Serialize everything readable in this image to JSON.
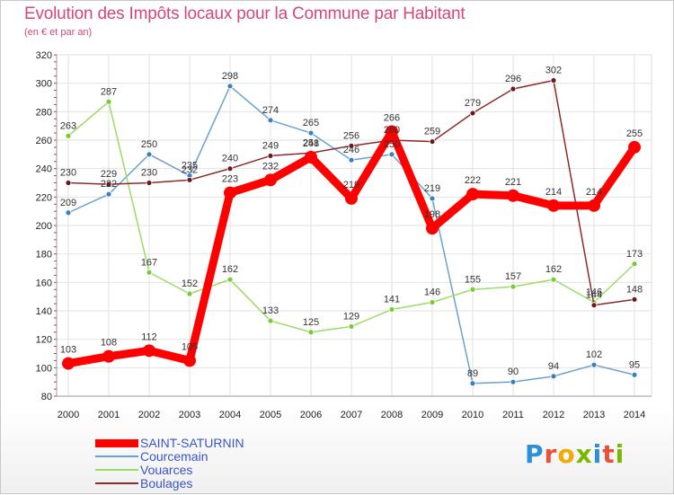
{
  "page": {
    "title": "Evolution des Impôts locaux pour la Commune par Habitant",
    "subtitle": "(en € et par an)",
    "logo_text": "Proxiti",
    "logo_colors": [
      "#2d8fd8",
      "#e8503a",
      "#f2a900",
      "#7ab800",
      "#2d8fd8",
      "#e8503a",
      "#7ab800"
    ]
  },
  "chart_data": {
    "type": "line",
    "title": "Evolution des Impôts locaux pour la Commune par Habitant",
    "subtitle": "(en € et par an)",
    "x": [
      "2000",
      "2001",
      "2002",
      "2003",
      "2004",
      "2005",
      "2006",
      "2007",
      "2008",
      "2009",
      "2010",
      "2011",
      "2012",
      "2013",
      "2014"
    ],
    "yticks": [
      80,
      100,
      120,
      140,
      160,
      180,
      200,
      220,
      240,
      260,
      280,
      300,
      320
    ],
    "ylim": [
      80,
      320
    ],
    "grid": true,
    "legend_position": "bottom-left",
    "series": [
      {
        "name": "SAINT-SATURNIN",
        "color": "#ff0000",
        "marker_color": "#ff0000",
        "emphasis": true,
        "values": [
          103,
          108,
          112,
          105,
          223,
          232,
          248,
          219,
          266,
          198,
          222,
          221,
          214,
          214,
          255
        ]
      },
      {
        "name": "Courcemain",
        "color": "#6aa0d4",
        "marker_color": "#3a7fbf",
        "values": [
          209,
          222,
          250,
          235,
          298,
          274,
          265,
          246,
          250,
          219,
          89,
          90,
          94,
          102,
          95
        ]
      },
      {
        "name": "Vouarces",
        "color": "#99dd66",
        "marker_color": "#77cc33",
        "values": [
          263,
          287,
          167,
          152,
          162,
          133,
          125,
          129,
          141,
          146,
          155,
          157,
          162,
          146,
          173
        ]
      },
      {
        "name": "Boulages",
        "color": "#8b2b2b",
        "marker_color": "#6b1a1a",
        "values": [
          230,
          229,
          230,
          232,
          240,
          249,
          251,
          256,
          260,
          259,
          279,
          296,
          302,
          144,
          148
        ]
      }
    ]
  }
}
